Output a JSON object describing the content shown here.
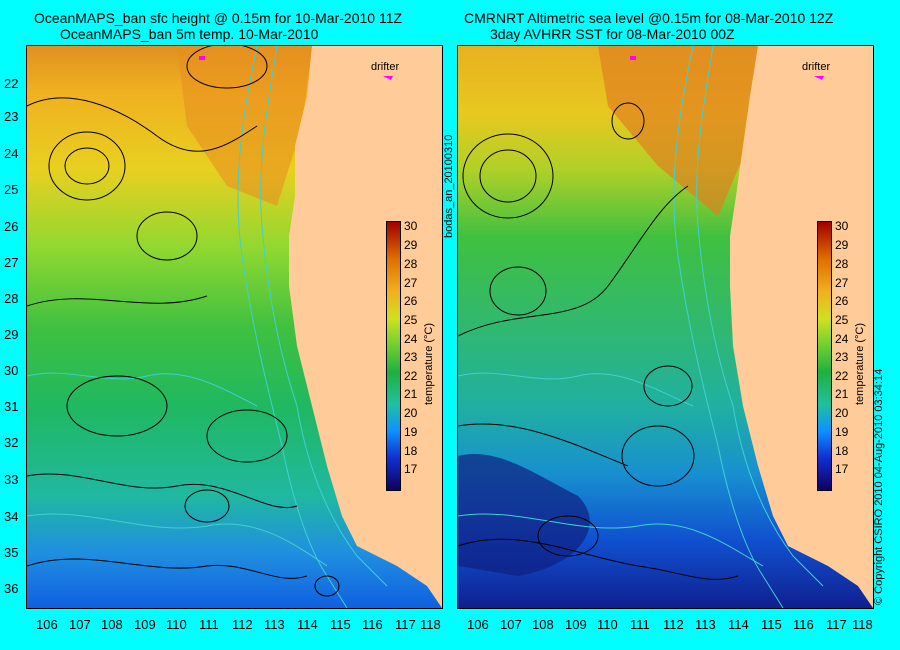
{
  "left": {
    "title_line1": "OceanMAPS_ban sfc height @ 0.15m for 10-Mar-2010 11Z",
    "title_line2": "OceanMAPS_ban 5m temp. 10-Mar-2010",
    "drifter_label": "drifter"
  },
  "right": {
    "title_line1": "CMRNRT Altimetric sea level  @0.15m  for 08-Mar-2010 12Z",
    "title_line2": "3day AVHRR SST for 08-Mar-2010 00Z",
    "drifter_label": "drifter"
  },
  "lat_labels": [
    "22",
    "23",
    "24",
    "25",
    "26",
    "27",
    "28",
    "29",
    "30",
    "31",
    "32",
    "33",
    "34",
    "35",
    "36"
  ],
  "lon_labels": [
    "106",
    "107",
    "108",
    "109",
    "110",
    "111",
    "112",
    "113",
    "114",
    "115",
    "116",
    "117",
    "118"
  ],
  "colorbar": {
    "ticks": [
      "30",
      "29",
      "28",
      "27",
      "26",
      "25",
      "24",
      "23",
      "22",
      "21",
      "20",
      "19",
      "18",
      "17"
    ],
    "title": "temperature (°C)"
  },
  "side_text": {
    "middle": "bodas_an_20100310",
    "right": "© Copyright CSIRO 2010   04-Aug-2010 03:34:14"
  },
  "colors": {
    "background": "#00ffff",
    "land": "#ffcc99",
    "contour": "#000000",
    "isobath": "#40d0d0",
    "drifter": "#ff00ff"
  }
}
